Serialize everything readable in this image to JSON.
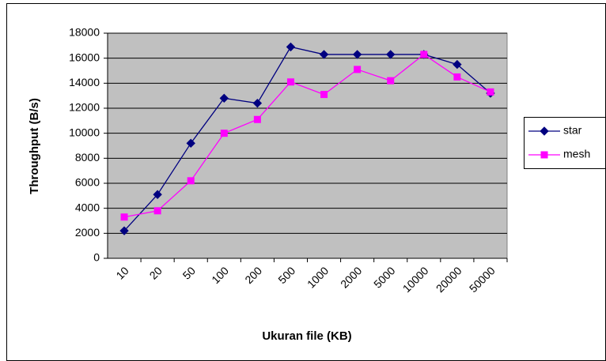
{
  "chart_data": {
    "type": "line",
    "x_label": "Ukuran file (KB)",
    "y_label": "Throughput (B/s)",
    "categories": [
      "10",
      "20",
      "50",
      "100",
      "200",
      "500",
      "1000",
      "2000",
      "5000",
      "10000",
      "20000",
      "50000"
    ],
    "series": [
      {
        "name": "star",
        "color": "#000080",
        "marker": "diamond",
        "values": [
          2200,
          5100,
          9200,
          12800,
          12400,
          16900,
          16300,
          16300,
          16300,
          16300,
          15500,
          13200
        ]
      },
      {
        "name": "mesh",
        "color": "#ff00ff",
        "marker": "square",
        "values": [
          3300,
          3800,
          6200,
          10000,
          11100,
          14100,
          13100,
          15100,
          14200,
          16300,
          14500,
          13300
        ]
      }
    ],
    "ylim": [
      0,
      18000
    ],
    "yticks": [
      0,
      2000,
      4000,
      6000,
      8000,
      10000,
      12000,
      14000,
      16000,
      18000
    ],
    "grid": true,
    "legend": "right",
    "plot_background": "#c0c0c0"
  }
}
